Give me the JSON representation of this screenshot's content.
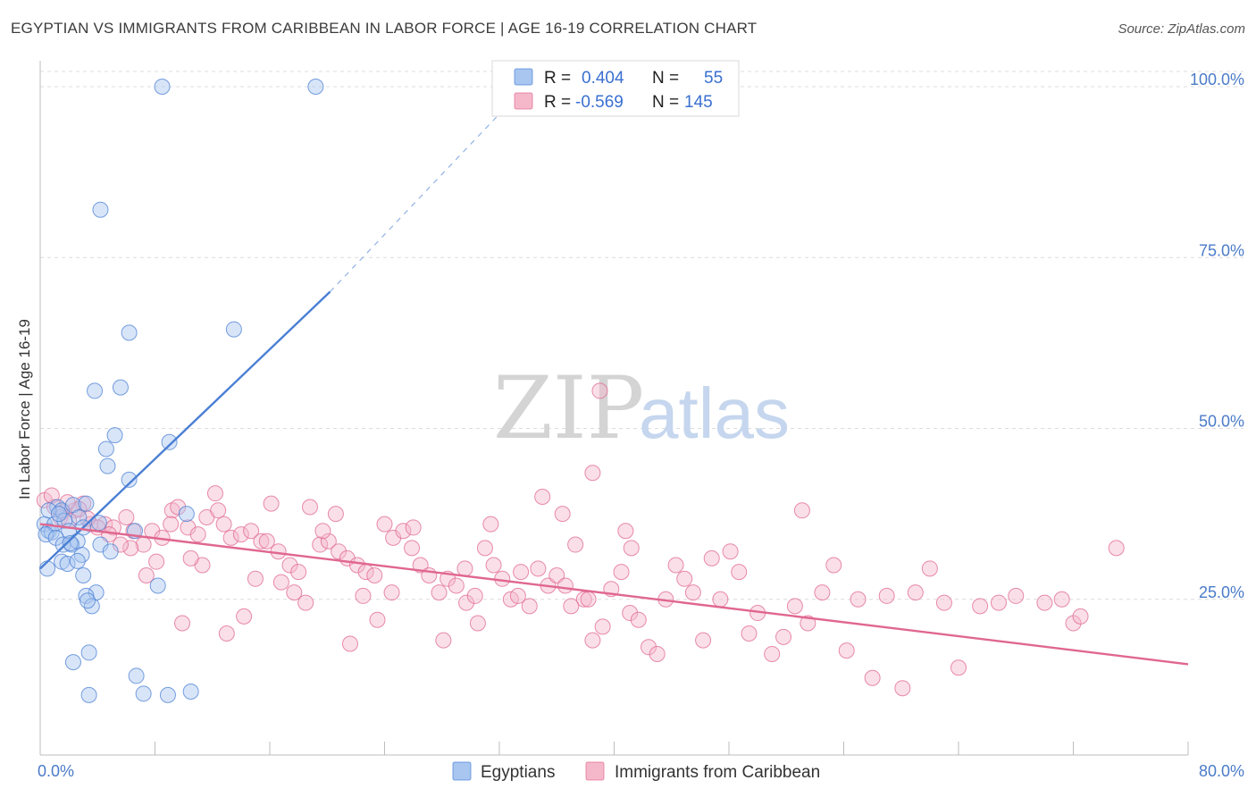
{
  "header": {
    "title": "EGYPTIAN VS IMMIGRANTS FROM CARIBBEAN IN LABOR FORCE | AGE 16-19 CORRELATION CHART",
    "source": "Source: ZipAtlas.com"
  },
  "watermark": {
    "zip": "ZIP",
    "atlas": "atlas"
  },
  "legend": {
    "r_label": "R =",
    "n_label": "N =",
    "rows": [
      {
        "series": "Egyptians",
        "r": "0.404",
        "n": "55",
        "color": "#a8c6f0"
      },
      {
        "series": "Immigrants from Caribbean",
        "r": "-0.569",
        "n": "145",
        "color": "#f5b8cb"
      }
    ]
  },
  "chart_data": {
    "type": "scatter",
    "xlabel": "",
    "ylabel": "In Labor Force | Age 16-19",
    "xlim": [
      0,
      80
    ],
    "ylim": [
      0,
      100
    ],
    "x_tick_labels": [
      "0.0%",
      "80.0%"
    ],
    "y_tick_labels": [
      "25.0%",
      "50.0%",
      "75.0%",
      "100.0%"
    ],
    "y_tick_values": [
      25,
      50,
      75,
      100
    ],
    "grid": true,
    "series": [
      {
        "name": "Egyptians",
        "color": "#4a7fd4",
        "fill": "#a8c6f0",
        "r": 0.404,
        "n": 55,
        "trend": {
          "x0": 0.0,
          "y0": 29.5,
          "x1": 20.2,
          "y1": 70.0,
          "dash_to": [
            32.0,
            96.0
          ]
        },
        "points": [
          [
            8.5,
            100
          ],
          [
            19.2,
            100
          ],
          [
            4.2,
            82
          ],
          [
            6.2,
            64
          ],
          [
            13.5,
            64.5
          ],
          [
            3.8,
            55.5
          ],
          [
            5.6,
            56
          ],
          [
            5.2,
            49
          ],
          [
            9.0,
            48
          ],
          [
            4.6,
            47
          ],
          [
            4.7,
            44.5
          ],
          [
            6.2,
            42.5
          ],
          [
            10.2,
            37.5
          ],
          [
            0.3,
            36
          ],
          [
            0.6,
            35
          ],
          [
            0.8,
            34.8
          ],
          [
            1.0,
            36
          ],
          [
            1.2,
            38.5
          ],
          [
            1.5,
            38
          ],
          [
            1.7,
            36.5
          ],
          [
            2.0,
            35
          ],
          [
            2.3,
            38.8
          ],
          [
            2.7,
            37
          ],
          [
            3.0,
            35.5
          ],
          [
            3.2,
            39
          ],
          [
            0.4,
            34.5
          ],
          [
            1.1,
            34
          ],
          [
            1.6,
            33
          ],
          [
            2.2,
            33
          ],
          [
            2.6,
            33.5
          ],
          [
            2.9,
            31.5
          ],
          [
            4.2,
            33
          ],
          [
            4.9,
            32
          ],
          [
            6.6,
            35
          ],
          [
            1.5,
            30.5
          ],
          [
            1.9,
            30.2
          ],
          [
            0.5,
            29.5
          ],
          [
            3.0,
            28.5
          ],
          [
            8.2,
            27
          ],
          [
            3.9,
            26
          ],
          [
            3.2,
            25.5
          ],
          [
            3.6,
            24
          ],
          [
            3.3,
            24.8
          ],
          [
            3.4,
            17.2
          ],
          [
            2.3,
            15.8
          ],
          [
            6.7,
            13.8
          ],
          [
            3.4,
            11
          ],
          [
            7.2,
            11.2
          ],
          [
            8.9,
            11
          ],
          [
            10.5,
            11.5
          ],
          [
            0.6,
            38
          ],
          [
            1.3,
            37.5
          ],
          [
            2.1,
            33.2
          ],
          [
            4.1,
            36.2
          ],
          [
            2.6,
            30.6
          ]
        ]
      },
      {
        "name": "Immigrants from Caribbean",
        "color": "#e0678f",
        "fill": "#f5b8cb",
        "r": -0.569,
        "n": 145,
        "trend": {
          "x0": 0.0,
          "y0": 36.0,
          "x1": 80.0,
          "y1": 15.5
        },
        "points": [
          [
            0.3,
            39.5
          ],
          [
            1.0,
            38.5
          ],
          [
            1.6,
            37.8
          ],
          [
            2.4,
            38
          ],
          [
            3.0,
            39
          ],
          [
            1.4,
            37
          ],
          [
            2.0,
            36.5
          ],
          [
            3.5,
            36
          ],
          [
            4.5,
            36
          ],
          [
            5.1,
            35.5
          ],
          [
            6.0,
            37
          ],
          [
            6.5,
            35
          ],
          [
            7.2,
            33
          ],
          [
            7.8,
            35
          ],
          [
            8.5,
            34
          ],
          [
            9.2,
            38
          ],
          [
            9.6,
            38.5
          ],
          [
            10.3,
            35.5
          ],
          [
            11.0,
            34.5
          ],
          [
            11.6,
            37
          ],
          [
            12.2,
            40.5
          ],
          [
            12.8,
            36
          ],
          [
            13.3,
            34
          ],
          [
            14.0,
            34.5
          ],
          [
            14.7,
            35
          ],
          [
            15.4,
            33.5
          ],
          [
            16.1,
            39
          ],
          [
            16.6,
            32
          ],
          [
            17.4,
            30
          ],
          [
            18.0,
            29
          ],
          [
            18.8,
            38.5
          ],
          [
            19.5,
            33
          ],
          [
            20.1,
            33.5
          ],
          [
            20.8,
            32
          ],
          [
            21.4,
            31
          ],
          [
            22.1,
            30
          ],
          [
            22.7,
            29
          ],
          [
            23.3,
            28.5
          ],
          [
            24.0,
            36
          ],
          [
            24.6,
            34
          ],
          [
            25.3,
            35
          ],
          [
            25.9,
            32.5
          ],
          [
            26.5,
            30
          ],
          [
            27.1,
            28.5
          ],
          [
            27.8,
            26
          ],
          [
            28.4,
            28
          ],
          [
            29.0,
            27
          ],
          [
            29.7,
            24.5
          ],
          [
            30.3,
            25.5
          ],
          [
            31.0,
            32.5
          ],
          [
            31.6,
            30
          ],
          [
            32.2,
            28
          ],
          [
            32.8,
            25
          ],
          [
            33.5,
            29
          ],
          [
            34.1,
            24
          ],
          [
            34.7,
            29.5
          ],
          [
            35.4,
            27
          ],
          [
            36.0,
            28.5
          ],
          [
            36.6,
            27
          ],
          [
            37.3,
            33
          ],
          [
            37.9,
            25
          ],
          [
            38.5,
            19
          ],
          [
            39.2,
            21
          ],
          [
            39.8,
            26.5
          ],
          [
            40.5,
            29
          ],
          [
            41.1,
            23
          ],
          [
            41.7,
            22
          ],
          [
            42.4,
            18
          ],
          [
            43.0,
            17
          ],
          [
            43.6,
            25
          ],
          [
            44.3,
            30
          ],
          [
            44.9,
            28
          ],
          [
            45.5,
            26
          ],
          [
            46.2,
            19
          ],
          [
            46.8,
            31
          ],
          [
            47.4,
            25
          ],
          [
            48.1,
            32
          ],
          [
            48.7,
            29
          ],
          [
            49.4,
            20
          ],
          [
            50.0,
            23
          ],
          [
            51.0,
            17
          ],
          [
            51.8,
            19.5
          ],
          [
            52.6,
            24
          ],
          [
            53.5,
            21.5
          ],
          [
            54.5,
            26
          ],
          [
            55.3,
            30
          ],
          [
            56.2,
            17.5
          ],
          [
            57.0,
            25
          ],
          [
            58.0,
            13.5
          ],
          [
            59.0,
            25.5
          ],
          [
            60.1,
            12
          ],
          [
            61.0,
            26
          ],
          [
            62.0,
            29.5
          ],
          [
            63.0,
            24.5
          ],
          [
            64.0,
            15
          ],
          [
            65.5,
            24
          ],
          [
            66.8,
            24.5
          ],
          [
            68.0,
            25.5
          ],
          [
            70.0,
            24.5
          ],
          [
            71.2,
            25
          ],
          [
            72.0,
            21.5
          ],
          [
            72.5,
            22.5
          ],
          [
            75.0,
            32.5
          ],
          [
            39.0,
            55.5
          ],
          [
            38.5,
            43.5
          ],
          [
            40.8,
            35
          ],
          [
            41.2,
            32.5
          ],
          [
            38.2,
            25
          ],
          [
            37.0,
            24
          ],
          [
            36.4,
            37.5
          ],
          [
            35.0,
            40
          ],
          [
            33.3,
            25.5
          ],
          [
            31.4,
            36
          ],
          [
            30.5,
            21.5
          ],
          [
            29.6,
            29.5
          ],
          [
            28.1,
            19
          ],
          [
            26.0,
            35.5
          ],
          [
            24.5,
            26
          ],
          [
            23.5,
            22
          ],
          [
            22.5,
            25.5
          ],
          [
            21.6,
            18.5
          ],
          [
            20.6,
            37.5
          ],
          [
            19.7,
            35
          ],
          [
            18.5,
            24.5
          ],
          [
            17.7,
            26
          ],
          [
            16.8,
            27.5
          ],
          [
            15.8,
            33.5
          ],
          [
            15.0,
            28
          ],
          [
            14.2,
            22.5
          ],
          [
            13.0,
            20
          ],
          [
            12.4,
            38
          ],
          [
            11.3,
            30
          ],
          [
            10.5,
            31
          ],
          [
            9.9,
            21.5
          ],
          [
            9.1,
            36
          ],
          [
            8.1,
            30.5
          ],
          [
            7.4,
            28.5
          ],
          [
            6.3,
            32.5
          ],
          [
            5.6,
            33
          ],
          [
            4.8,
            34.5
          ],
          [
            4.0,
            35.5
          ],
          [
            3.3,
            36.8
          ],
          [
            2.7,
            38.2
          ],
          [
            1.9,
            39.2
          ],
          [
            0.8,
            40.2
          ],
          [
            53.1,
            38
          ]
        ]
      }
    ]
  }
}
